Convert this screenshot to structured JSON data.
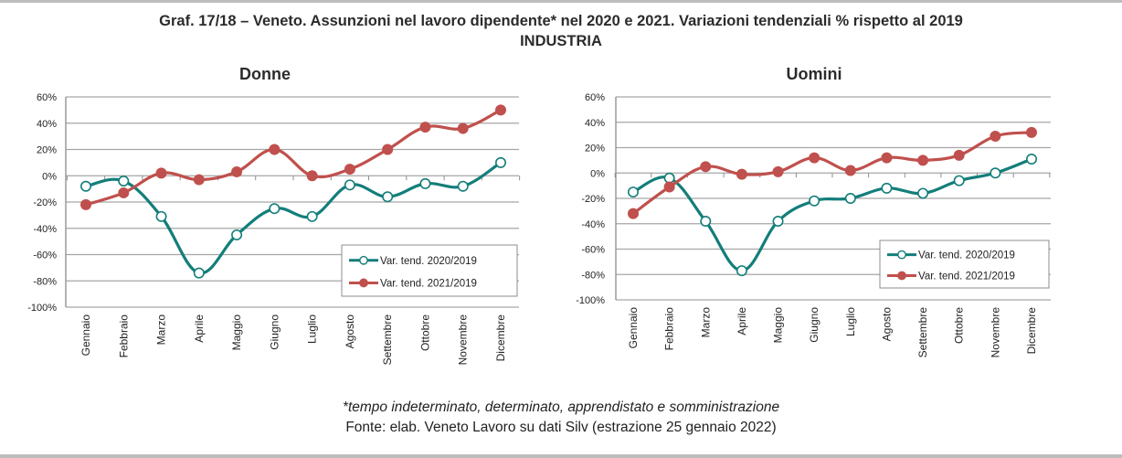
{
  "title_line1": "Graf. 17/18 – Veneto. Assunzioni nel lavoro dipendente* nel 2020 e 2021. Variazioni tendenziali % rispetto al 2019",
  "title_line2": "INDUSTRIA",
  "footnote": "*tempo indeterminato, determinato, apprendistato e somministrazione",
  "source": "Fonte: elab. Veneto Lavoro su dati Silv (estrazione 25 gennaio 2022)",
  "colors": {
    "series_2020": "#137e7a",
    "series_2021": "#c0504d",
    "grid": "#a6a6a6",
    "axis": "#8c8c8c"
  },
  "chart_data": [
    {
      "type": "line",
      "title": "Donne",
      "xlabel": "",
      "ylabel": "",
      "categories": [
        "Gennaio",
        "Febbraio",
        "Marzo",
        "Aprile",
        "Maggio",
        "Giugno",
        "Luglio",
        "Agosto",
        "Settembre",
        "Ottobre",
        "Novembre",
        "Dicembre"
      ],
      "ylim": [
        -100,
        60
      ],
      "yticks": [
        60,
        40,
        20,
        0,
        -20,
        -40,
        -60,
        -80,
        -100
      ],
      "ytick_labels": [
        "60%",
        "40%",
        "20%",
        "0%",
        "-20%",
        "-40%",
        "-60%",
        "-80%",
        "-100%"
      ],
      "grid": true,
      "legend_position": "bottom-right",
      "series": [
        {
          "name": "Var. tend. 2020/2019",
          "marker": "hollow-circle",
          "smooth": true,
          "values": [
            -8,
            -4,
            -31,
            -74,
            -45,
            -25,
            -31,
            -7,
            -16,
            -6,
            -8,
            10
          ]
        },
        {
          "name": "Var. tend. 2021/2019",
          "marker": "filled-circle",
          "smooth": true,
          "values": [
            -22,
            -13,
            2,
            -3,
            3,
            20,
            0,
            5,
            20,
            37,
            36,
            50
          ]
        }
      ]
    },
    {
      "type": "line",
      "title": "Uomini",
      "xlabel": "",
      "ylabel": "",
      "categories": [
        "Gennaio",
        "Febbraio",
        "Marzo",
        "Aprile",
        "Maggio",
        "Giugno",
        "Luglio",
        "Agosto",
        "Settembre",
        "Ottobre",
        "Novembre",
        "Dicembre"
      ],
      "ylim": [
        -100,
        60
      ],
      "yticks": [
        60,
        40,
        20,
        0,
        -20,
        -40,
        -60,
        -80,
        -100
      ],
      "ytick_labels": [
        "60%",
        "40%",
        "20%",
        "0%",
        "-20%",
        "-40%",
        "-60%",
        "-80%",
        "-100%"
      ],
      "grid": true,
      "legend_position": "bottom-right",
      "series": [
        {
          "name": "Var. tend. 2020/2019",
          "marker": "hollow-circle",
          "smooth": true,
          "values": [
            -15,
            -4,
            -38,
            -77,
            -38,
            -22,
            -20,
            -12,
            -16,
            -6,
            0,
            11
          ]
        },
        {
          "name": "Var. tend. 2021/2019",
          "marker": "filled-circle",
          "smooth": true,
          "values": [
            -32,
            -11,
            5,
            -1,
            1,
            12,
            2,
            12,
            10,
            14,
            29,
            32
          ]
        }
      ]
    }
  ]
}
